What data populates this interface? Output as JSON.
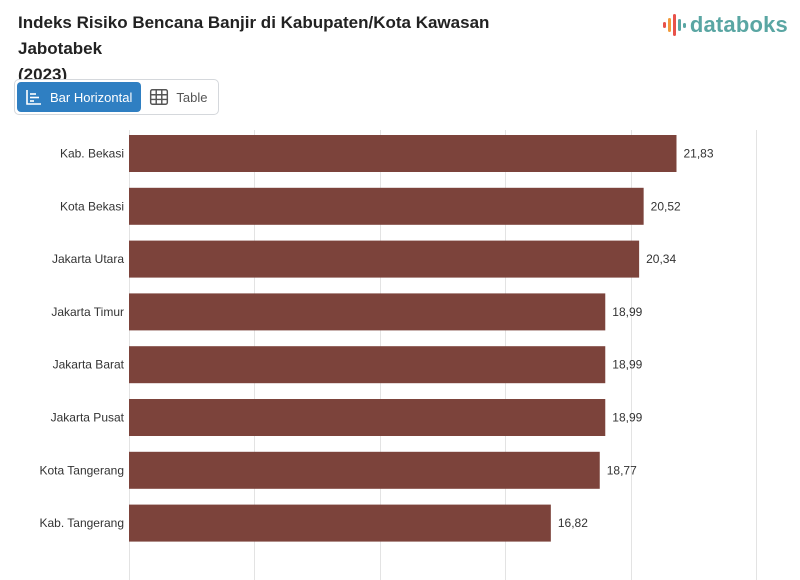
{
  "header": {
    "title_line1": "Indeks Risiko Bencana Banjir di Kabupaten/Kota Kawasan Jabotabek",
    "title_line2": "(2023)",
    "logo_text": "databoks"
  },
  "toolbar": {
    "bar_label": "Bar Horizontal",
    "table_label": "Table"
  },
  "colors": {
    "bar": "#7c433b",
    "grid": "#e3e3e3",
    "active_button": "#2f7fc2",
    "logo": "#5aa6a3"
  },
  "chart_data": {
    "type": "bar",
    "orientation": "horizontal",
    "title": "Indeks Risiko Bencana Banjir di Kabupaten/Kota Kawasan Jabotabek (2023)",
    "categories": [
      "Kab. Bekasi",
      "Kota Bekasi",
      "Jakarta Utara",
      "Jakarta Timur",
      "Jakarta Barat",
      "Jakarta Pusat",
      "Kota Tangerang",
      "Kab. Tangerang"
    ],
    "values": [
      21.83,
      20.52,
      20.34,
      18.99,
      18.99,
      18.99,
      18.77,
      16.82
    ],
    "value_labels": [
      "21,83",
      "20,52",
      "20,34",
      "18,99",
      "18,99",
      "18,99",
      "18,77",
      "16,82"
    ],
    "xlim": [
      0,
      25
    ],
    "grid": true,
    "legend": "none"
  }
}
